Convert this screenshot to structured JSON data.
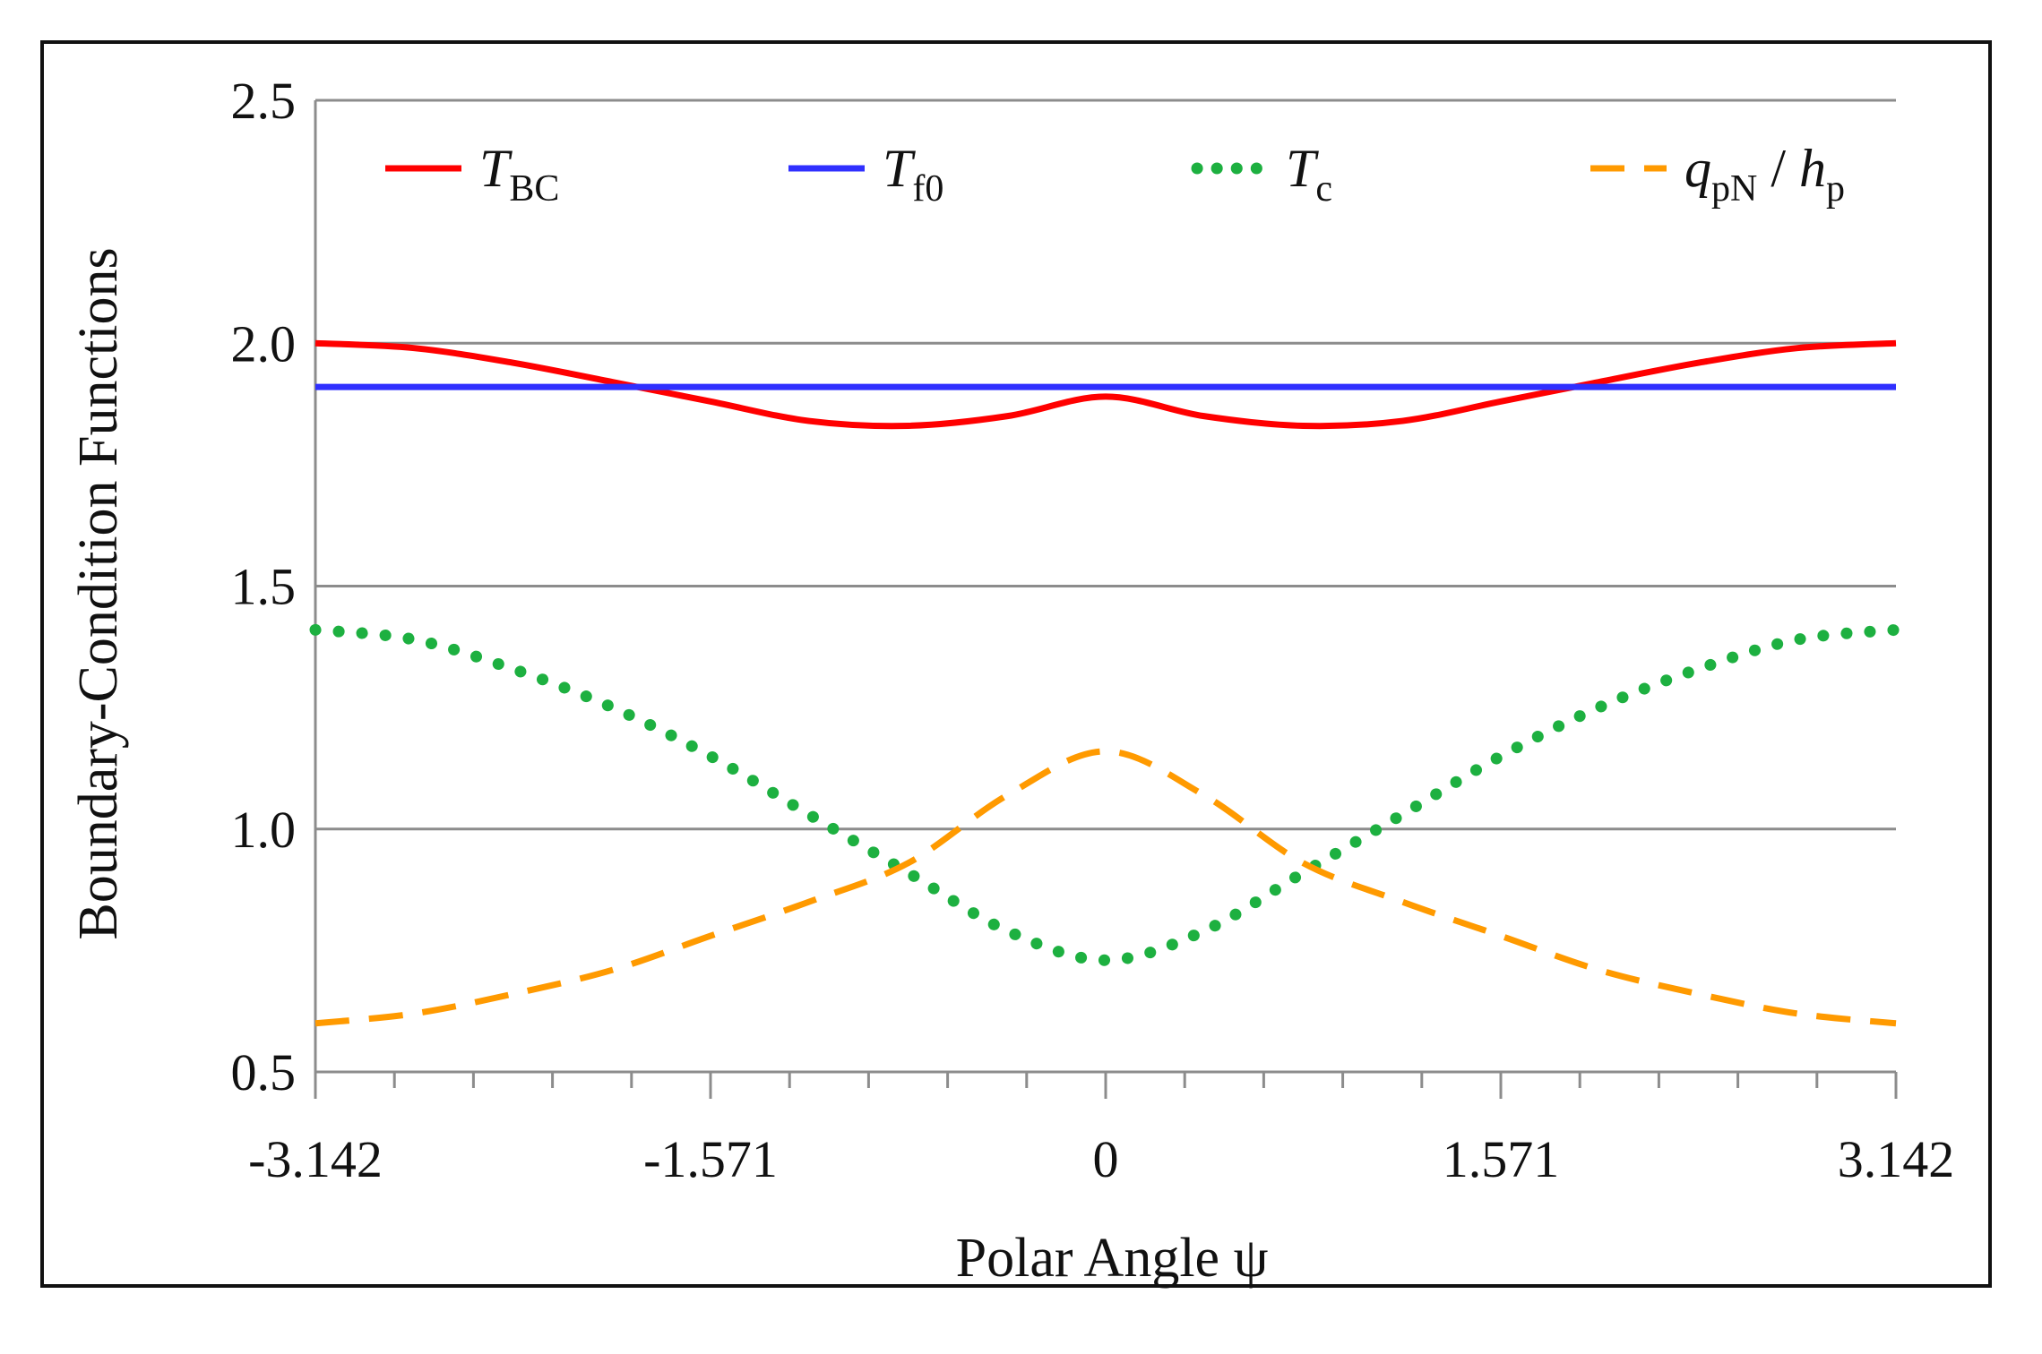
{
  "chart_data": {
    "type": "line",
    "title": "",
    "xlabel": "Polar Angle ψ",
    "ylabel": "Boundary-Condition Functions",
    "xlim": [
      -3.142,
      3.142
    ],
    "ylim": [
      0.5,
      2.5
    ],
    "xticks": [
      "-3.142",
      "-1.571",
      "0",
      "1.571",
      "3.142"
    ],
    "xtick_values": [
      -3.142,
      -1.571,
      0,
      1.571,
      3.142
    ],
    "yticks": [
      "0.5",
      "1.0",
      "1.5",
      "2.0",
      "2.5"
    ],
    "ytick_values": [
      0.5,
      1.0,
      1.5,
      2.0,
      2.5
    ],
    "grid": "horizontal",
    "legend_position": "top",
    "series": [
      {
        "name": "T_BC",
        "label_main": "T",
        "label_sub": "BC",
        "color": "#ff0000",
        "style": "solid",
        "x": [
          -3.142,
          -2.75,
          -2.36,
          -1.96,
          -1.571,
          -1.18,
          -0.785,
          -0.39,
          0,
          0.39,
          0.785,
          1.18,
          1.571,
          1.96,
          2.36,
          2.75,
          3.142
        ],
        "y": [
          2.0,
          1.99,
          1.96,
          1.92,
          1.88,
          1.84,
          1.83,
          1.85,
          1.89,
          1.85,
          1.83,
          1.84,
          1.88,
          1.92,
          1.96,
          1.99,
          2.0
        ]
      },
      {
        "name": "T_f0",
        "label_main": "T",
        "label_sub": "f0",
        "color": "#3030ff",
        "style": "solid",
        "x": [
          -3.142,
          3.142
        ],
        "y": [
          1.91,
          1.91
        ]
      },
      {
        "name": "T_c",
        "label_main": "T",
        "label_sub": "c",
        "color": "#1db040",
        "style": "dotted",
        "x": [
          -3.142,
          -2.75,
          -2.36,
          -1.96,
          -1.571,
          -1.18,
          -0.785,
          -0.39,
          0,
          0.39,
          0.785,
          1.18,
          1.571,
          1.96,
          2.36,
          2.75,
          3.142
        ],
        "y": [
          1.41,
          1.39,
          1.33,
          1.25,
          1.15,
          1.03,
          0.91,
          0.79,
          0.73,
          0.79,
          0.91,
          1.03,
          1.15,
          1.25,
          1.33,
          1.39,
          1.41
        ]
      },
      {
        "name": "q_pN / h_p",
        "label_main": "q",
        "label_sub": "pN",
        "label_sep": " / ",
        "label_main2": "h",
        "label_sub2": "p",
        "color": "#ff9a00",
        "style": "dashed",
        "x": [
          -3.142,
          -2.75,
          -2.36,
          -1.96,
          -1.571,
          -1.18,
          -0.785,
          -0.39,
          0,
          0.39,
          0.785,
          1.18,
          1.571,
          1.96,
          2.36,
          2.75,
          3.142
        ],
        "y": [
          0.6,
          0.62,
          0.66,
          0.71,
          0.78,
          0.85,
          0.93,
          1.07,
          1.16,
          1.07,
          0.93,
          0.85,
          0.78,
          0.71,
          0.66,
          0.62,
          0.6
        ]
      }
    ]
  }
}
